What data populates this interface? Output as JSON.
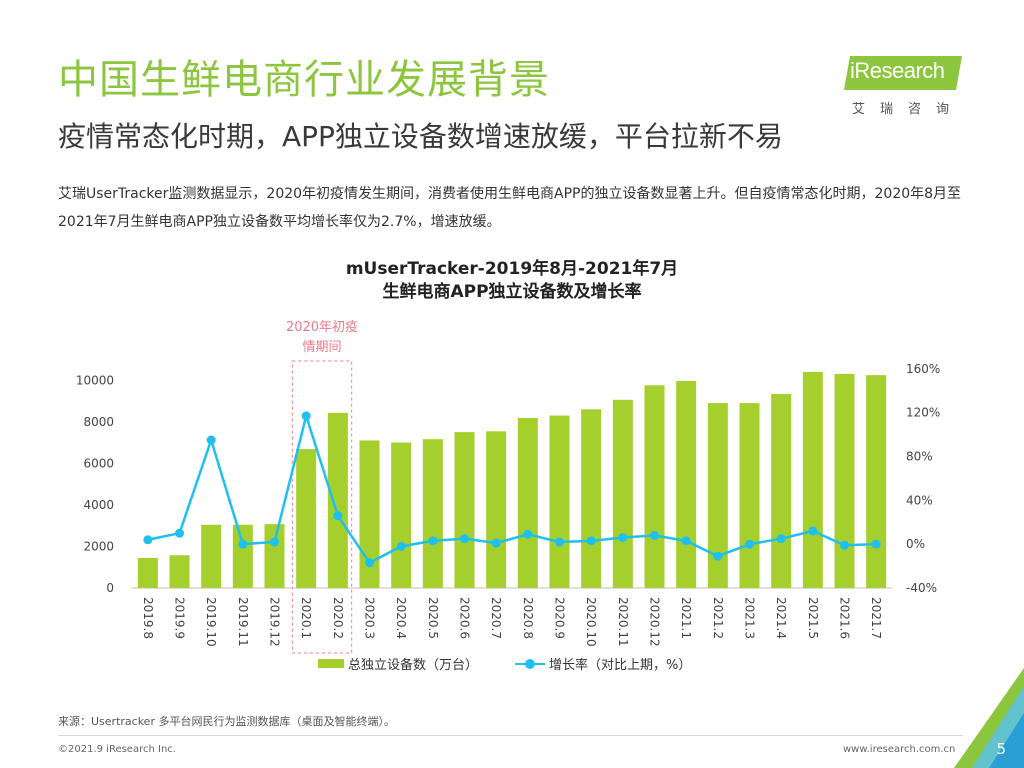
{
  "header": {
    "title": "中国生鲜电商行业发展背景",
    "subtitle": "疫情常态化时期，APP独立设备数增速放缓，平台拉新不易",
    "description": "艾瑞UserTracker监测数据显示，2020年初疫情发生期间，消费者使用生鲜电商APP的独立设备数显著上升。但自疫情常态化时期，2020年8月至2021年7月生鲜电商APP独立设备数平均增长率仅为2.7%，增速放缓。"
  },
  "logo": {
    "brand": "iResearch",
    "sub": "艾瑞咨询"
  },
  "colors": {
    "title": "#8cc63e",
    "bar": "#a4cf2c",
    "line": "#1fc0ee",
    "highlight": "#f07a8c"
  },
  "chart_data": {
    "type": "bar",
    "title_line1": "mUserTracker-2019年8月-2021年7月",
    "title_line2": "生鲜电商APP独立设备数及增长率",
    "categories": [
      "2019.8",
      "2019.9",
      "2019.10",
      "2019.11",
      "2019.12",
      "2020.1",
      "2020.2",
      "2020.3",
      "2020.4",
      "2020.5",
      "2020.6",
      "2020.7",
      "2020.8",
      "2020.9",
      "2020.10",
      "2020.11",
      "2020.12",
      "2021.1",
      "2021.2",
      "2021.3",
      "2021.4",
      "2021.5",
      "2021.6",
      "2021.7"
    ],
    "series": [
      {
        "name": "总独立设备数（万台）",
        "type": "bar",
        "axis": "left",
        "values": [
          1450,
          1580,
          3050,
          3050,
          3080,
          6700,
          8450,
          7120,
          7020,
          7180,
          7520,
          7560,
          8200,
          8320,
          8620,
          9080,
          9780,
          9990,
          8920,
          8920,
          9360,
          10420,
          10330,
          10270
        ]
      },
      {
        "name": "增长率（对比上期，%）",
        "type": "line",
        "axis": "right",
        "values": [
          4,
          10,
          95,
          0,
          2,
          117,
          26,
          -17,
          -2,
          3,
          5,
          1,
          9,
          2,
          3,
          6,
          8,
          3,
          -11,
          0,
          5,
          12,
          -1,
          0
        ]
      }
    ],
    "y_left": {
      "ticks": [
        0,
        2000,
        4000,
        6000,
        8000,
        10000
      ],
      "ylim": [
        0,
        11000
      ]
    },
    "y_right": {
      "ticks": [
        "-40%",
        "0%",
        "40%",
        "80%",
        "120%",
        "160%"
      ],
      "ylim": [
        -40,
        168
      ]
    },
    "annotation": {
      "line1": "2020年初疫",
      "line2": "情期间",
      "from_category": "2020.1",
      "to_category": "2020.2"
    }
  },
  "footer": {
    "source": "来源：Usertracker 多平台网民行为监测数据库（桌面及智能终端）。",
    "copyright": "©2021.9 iResearch Inc.",
    "website": "www.iresearch.com.cn",
    "page_number": "5"
  }
}
